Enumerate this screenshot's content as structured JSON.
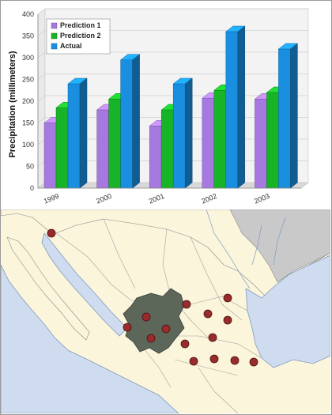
{
  "chart_data": {
    "type": "bar",
    "ylabel": "Precipitation (millimeters)",
    "xlabel": "",
    "ylim": [
      0,
      400
    ],
    "yticks": [
      0,
      50,
      100,
      150,
      200,
      250,
      300,
      350,
      400
    ],
    "categories": [
      "1999",
      "2000",
      "2001",
      "2002",
      "2003"
    ],
    "series": [
      {
        "name": "Prediction 1",
        "values": [
          150,
          180,
          143,
          207,
          205
        ],
        "color": "#a679e0"
      },
      {
        "name": "Prediction 2",
        "values": [
          185,
          205,
          180,
          225,
          220
        ],
        "color": "#18b427"
      },
      {
        "name": "Actual",
        "values": [
          240,
          295,
          240,
          360,
          320
        ],
        "color": "#1a8fe0"
      }
    ],
    "grid": true,
    "legend": "top-left",
    "three_d": true
  },
  "map": {
    "description_colors": {
      "land": "#fbf5dc",
      "sea": "#cfdcef",
      "neighbor": "#c9c9c9",
      "region": "#5c6659",
      "marker": "#9a2b2b"
    },
    "marker_count": 15
  }
}
